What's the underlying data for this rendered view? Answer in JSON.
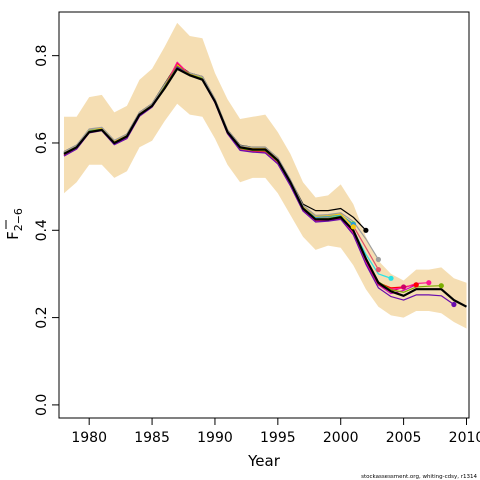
{
  "chart_data": {
    "type": "line",
    "xlabel": "Year",
    "ylabel_main": "F",
    "ylabel_sub": "2−6",
    "footer": "stockassessment.org, whiting-cdsy, r1314",
    "xlim": [
      1977.6,
      2010.2
    ],
    "ylim": [
      -0.03,
      0.9
    ],
    "xticks": [
      1980,
      1985,
      1990,
      1995,
      2000,
      2005,
      2010
    ],
    "yticks": [
      0.0,
      0.2,
      0.4,
      0.6,
      0.8
    ],
    "xtick_labels": [
      "1980",
      "1985",
      "1990",
      "1995",
      "2000",
      "2005",
      "2010"
    ],
    "ytick_labels": [
      "0.0",
      "0.2",
      "0.4",
      "0.6",
      "0.8"
    ],
    "colors": {
      "band": "#f5deb3",
      "main": "#000000"
    },
    "band": {
      "x": [
        1978,
        1979,
        1980,
        1981,
        1982,
        1983,
        1984,
        1985,
        1986,
        1987,
        1988,
        1989,
        1990,
        1991,
        1992,
        1993,
        1994,
        1995,
        1996,
        1997,
        1998,
        1999,
        2000,
        2001,
        2002,
        2003,
        2004,
        2005,
        2006,
        2007,
        2008,
        2009,
        2010
      ],
      "upper": [
        0.66,
        0.66,
        0.705,
        0.71,
        0.67,
        0.685,
        0.745,
        0.77,
        0.82,
        0.875,
        0.845,
        0.84,
        0.76,
        0.7,
        0.655,
        0.66,
        0.665,
        0.625,
        0.575,
        0.51,
        0.475,
        0.48,
        0.505,
        0.46,
        0.385,
        0.33,
        0.3,
        0.285,
        0.31,
        0.31,
        0.315,
        0.29,
        0.28
      ],
      "lower": [
        0.485,
        0.51,
        0.55,
        0.55,
        0.52,
        0.535,
        0.59,
        0.605,
        0.65,
        0.69,
        0.665,
        0.66,
        0.61,
        0.55,
        0.51,
        0.52,
        0.52,
        0.485,
        0.435,
        0.385,
        0.355,
        0.365,
        0.36,
        0.32,
        0.265,
        0.225,
        0.205,
        0.2,
        0.215,
        0.215,
        0.21,
        0.19,
        0.175
      ]
    },
    "series": [
      {
        "color": "#000000",
        "width": 2.2,
        "end_dot": false,
        "x": [
          1978,
          1979,
          1980,
          1981,
          1982,
          1983,
          1984,
          1985,
          1986,
          1987,
          1988,
          1989,
          1990,
          1991,
          1992,
          1993,
          1994,
          1995,
          1996,
          1997,
          1998,
          1999,
          2000,
          2001,
          2002,
          2003,
          2004,
          2005,
          2006,
          2007,
          2008,
          2009,
          2010
        ],
        "y": [
          0.575,
          0.59,
          0.625,
          0.63,
          0.6,
          0.615,
          0.665,
          0.685,
          0.725,
          0.77,
          0.755,
          0.745,
          0.695,
          0.625,
          0.59,
          0.585,
          0.585,
          0.56,
          0.51,
          0.45,
          0.425,
          0.425,
          0.43,
          0.4,
          0.335,
          0.28,
          0.26,
          0.25,
          0.265,
          0.265,
          0.265,
          0.24,
          0.225
        ]
      },
      {
        "color": "#000000",
        "width": 1.2,
        "end_dot": true,
        "x": [
          1978,
          1979,
          1980,
          1981,
          1982,
          1983,
          1984,
          1985,
          1986,
          1987,
          1988,
          1989,
          1990,
          1991,
          1992,
          1993,
          1994,
          1995,
          1996,
          1997,
          1998,
          1999,
          2000,
          2001,
          2002
        ],
        "y": [
          0.58,
          0.595,
          0.63,
          0.635,
          0.605,
          0.62,
          0.67,
          0.69,
          0.735,
          0.78,
          0.76,
          0.752,
          0.7,
          0.63,
          0.595,
          0.59,
          0.59,
          0.565,
          0.515,
          0.46,
          0.445,
          0.445,
          0.45,
          0.43,
          0.4
        ]
      },
      {
        "color": "#df536b",
        "width": 1.2,
        "end_dot": true,
        "x": [
          1978,
          1979,
          1980,
          1981,
          1982,
          1983,
          1984,
          1985,
          1986,
          1987,
          1988,
          1989,
          1990,
          1991,
          1992,
          1993,
          1994,
          1995,
          1996,
          1997,
          1998,
          1999,
          2000,
          2001,
          2002,
          2003
        ],
        "y": [
          0.575,
          0.59,
          0.628,
          0.632,
          0.6,
          0.615,
          0.665,
          0.686,
          0.73,
          0.775,
          0.757,
          0.748,
          0.696,
          0.625,
          0.588,
          0.584,
          0.582,
          0.558,
          0.508,
          0.45,
          0.428,
          0.43,
          0.437,
          0.41,
          0.36,
          0.31
        ]
      },
      {
        "color": "#61d04f",
        "width": 1.2,
        "end_dot": true,
        "x": [
          1978,
          1979,
          1980,
          1981,
          1982,
          1983,
          1984,
          1985,
          1986,
          1987,
          1988,
          1989,
          1990,
          1991,
          1992,
          1993,
          1994,
          1995,
          1996,
          1997,
          1998,
          1999,
          2000,
          2001
        ],
        "y": [
          0.577,
          0.592,
          0.63,
          0.633,
          0.603,
          0.617,
          0.667,
          0.687,
          0.732,
          0.777,
          0.758,
          0.75,
          0.698,
          0.628,
          0.592,
          0.587,
          0.586,
          0.562,
          0.512,
          0.452,
          0.43,
          0.432,
          0.435,
          0.415
        ]
      },
      {
        "color": "#2297e6",
        "width": 1.2,
        "end_dot": true,
        "x": [
          1978,
          1979,
          1980,
          1981,
          1982,
          1983,
          1984,
          1985,
          1986,
          1987,
          1988,
          1989,
          1990,
          1991,
          1992,
          1993,
          1994,
          1995,
          1996,
          1997,
          1998,
          1999,
          2000,
          2001
        ],
        "y": [
          0.578,
          0.593,
          0.63,
          0.634,
          0.604,
          0.618,
          0.668,
          0.688,
          0.733,
          0.778,
          0.759,
          0.751,
          0.699,
          0.629,
          0.593,
          0.588,
          0.588,
          0.563,
          0.513,
          0.453,
          0.43,
          0.433,
          0.436,
          0.413
        ]
      },
      {
        "color": "#28e2e5",
        "width": 1.2,
        "end_dot": true,
        "x": [
          1978,
          1979,
          1980,
          1981,
          1982,
          1983,
          1984,
          1985,
          1986,
          1987,
          1988,
          1989,
          1990,
          1991,
          1992,
          1993,
          1994,
          1995,
          1996,
          1997,
          1998,
          1999,
          2000,
          2001,
          2002,
          2003,
          2004
        ],
        "y": [
          0.574,
          0.589,
          0.627,
          0.631,
          0.6,
          0.614,
          0.664,
          0.685,
          0.729,
          0.774,
          0.756,
          0.747,
          0.695,
          0.624,
          0.587,
          0.583,
          0.581,
          0.557,
          0.507,
          0.449,
          0.427,
          0.428,
          0.433,
          0.4,
          0.345,
          0.3,
          0.29
        ]
      },
      {
        "color": "#cd0bbc",
        "width": 1.2,
        "end_dot": true,
        "x": [
          1978,
          1979,
          1980,
          1981,
          1982,
          1983,
          1984,
          1985,
          1986,
          1987,
          1988,
          1989,
          1990,
          1991,
          1992,
          1993,
          1994,
          1995,
          1996,
          1997,
          1998,
          1999,
          2000,
          2001,
          2002,
          2003,
          2004,
          2005,
          2006
        ],
        "y": [
          0.572,
          0.588,
          0.625,
          0.63,
          0.598,
          0.612,
          0.663,
          0.684,
          0.727,
          0.782,
          0.757,
          0.746,
          0.694,
          0.623,
          0.585,
          0.582,
          0.58,
          0.555,
          0.505,
          0.447,
          0.423,
          0.425,
          0.43,
          0.395,
          0.33,
          0.275,
          0.255,
          0.262,
          0.275
        ]
      },
      {
        "color": "#f5c710",
        "width": 1.2,
        "end_dot": true,
        "x": [
          1978,
          1979,
          1980,
          1981,
          1982,
          1983,
          1984,
          1985,
          1986,
          1987,
          1988,
          1989,
          1990,
          1991,
          1992,
          1993,
          1994,
          1995,
          1996,
          1997,
          1998,
          1999,
          2000,
          2001
        ],
        "y": [
          0.579,
          0.594,
          0.631,
          0.634,
          0.604,
          0.619,
          0.668,
          0.688,
          0.733,
          0.779,
          0.759,
          0.751,
          0.699,
          0.629,
          0.593,
          0.588,
          0.588,
          0.564,
          0.514,
          0.455,
          0.432,
          0.434,
          0.437,
          0.408
        ]
      },
      {
        "color": "#9e9e9e",
        "width": 1.2,
        "end_dot": true,
        "x": [
          1978,
          1979,
          1980,
          1981,
          1982,
          1983,
          1984,
          1985,
          1986,
          1987,
          1988,
          1989,
          1990,
          1991,
          1992,
          1993,
          1994,
          1995,
          1996,
          1997,
          1998,
          1999,
          2000,
          2001,
          2002,
          2003
        ],
        "y": [
          0.58,
          0.595,
          0.632,
          0.636,
          0.606,
          0.62,
          0.67,
          0.69,
          0.734,
          0.776,
          0.76,
          0.752,
          0.7,
          0.63,
          0.594,
          0.59,
          0.59,
          0.566,
          0.516,
          0.457,
          0.434,
          0.436,
          0.44,
          0.42,
          0.38,
          0.333
        ]
      },
      {
        "color": "#cc0066",
        "width": 1.2,
        "end_dot": true,
        "x": [
          1978,
          1979,
          1980,
          1981,
          1982,
          1983,
          1984,
          1985,
          1986,
          1987,
          1988,
          1989,
          1990,
          1991,
          1992,
          1993,
          1994,
          1995,
          1996,
          1997,
          1998,
          1999,
          2000,
          2001,
          2002,
          2003,
          2004,
          2005
        ],
        "y": [
          0.571,
          0.587,
          0.624,
          0.629,
          0.597,
          0.611,
          0.662,
          0.683,
          0.726,
          0.784,
          0.756,
          0.745,
          0.693,
          0.622,
          0.584,
          0.58,
          0.578,
          0.553,
          0.503,
          0.445,
          0.42,
          0.422,
          0.427,
          0.39,
          0.325,
          0.275,
          0.26,
          0.27
        ]
      },
      {
        "color": "#ff0000",
        "width": 1.2,
        "end_dot": true,
        "x": [
          1978,
          1979,
          1980,
          1981,
          1982,
          1983,
          1984,
          1985,
          1986,
          1987,
          1988,
          1989,
          1990,
          1991,
          1992,
          1993,
          1994,
          1995,
          1996,
          1997,
          1998,
          1999,
          2000,
          2001,
          2002,
          2003,
          2004,
          2005,
          2006
        ],
        "y": [
          0.573,
          0.588,
          0.626,
          0.63,
          0.599,
          0.613,
          0.663,
          0.684,
          0.728,
          0.783,
          0.757,
          0.746,
          0.694,
          0.623,
          0.586,
          0.581,
          0.579,
          0.554,
          0.504,
          0.446,
          0.422,
          0.424,
          0.43,
          0.395,
          0.33,
          0.28,
          0.268,
          0.27,
          0.275
        ]
      },
      {
        "color": "#ff1493",
        "width": 1.2,
        "end_dot": true,
        "x": [
          1978,
          1979,
          1980,
          1981,
          1982,
          1983,
          1984,
          1985,
          1986,
          1987,
          1988,
          1989,
          1990,
          1991,
          1992,
          1993,
          1994,
          1995,
          1996,
          1997,
          1998,
          1999,
          2000,
          2001,
          2002,
          2003,
          2004,
          2005,
          2006,
          2007
        ],
        "y": [
          0.572,
          0.587,
          0.625,
          0.629,
          0.598,
          0.612,
          0.662,
          0.683,
          0.727,
          0.785,
          0.756,
          0.745,
          0.693,
          0.622,
          0.585,
          0.58,
          0.578,
          0.553,
          0.503,
          0.445,
          0.421,
          0.423,
          0.43,
          0.393,
          0.328,
          0.278,
          0.265,
          0.268,
          0.278,
          0.28
        ]
      },
      {
        "color": "#7cae00",
        "width": 1.2,
        "end_dot": true,
        "x": [
          1978,
          1979,
          1980,
          1981,
          1982,
          1983,
          1984,
          1985,
          1986,
          1987,
          1988,
          1989,
          1990,
          1991,
          1992,
          1993,
          1994,
          1995,
          1996,
          1997,
          1998,
          1999,
          2000,
          2001,
          2002,
          2003,
          2004,
          2005,
          2006,
          2007,
          2008
        ],
        "y": [
          0.574,
          0.589,
          0.627,
          0.631,
          0.6,
          0.614,
          0.664,
          0.685,
          0.729,
          0.776,
          0.757,
          0.747,
          0.695,
          0.624,
          0.587,
          0.583,
          0.582,
          0.557,
          0.507,
          0.449,
          0.426,
          0.427,
          0.432,
          0.398,
          0.332,
          0.282,
          0.264,
          0.258,
          0.27,
          0.272,
          0.273
        ]
      },
      {
        "color": "#6a0dad",
        "width": 1.2,
        "end_dot": true,
        "x": [
          1978,
          1979,
          1980,
          1981,
          1982,
          1983,
          1984,
          1985,
          1986,
          1987,
          1988,
          1989,
          1990,
          1991,
          1992,
          1993,
          1994,
          1995,
          1996,
          1997,
          1998,
          1999,
          2000,
          2001,
          2002,
          2003,
          2004,
          2005,
          2006,
          2007,
          2008,
          2009
        ],
        "y": [
          0.57,
          0.586,
          0.623,
          0.628,
          0.596,
          0.61,
          0.661,
          0.682,
          0.725,
          0.774,
          0.755,
          0.744,
          0.692,
          0.621,
          0.583,
          0.579,
          0.577,
          0.552,
          0.502,
          0.444,
          0.419,
          0.421,
          0.425,
          0.39,
          0.322,
          0.268,
          0.248,
          0.24,
          0.252,
          0.252,
          0.25,
          0.23
        ]
      }
    ]
  }
}
